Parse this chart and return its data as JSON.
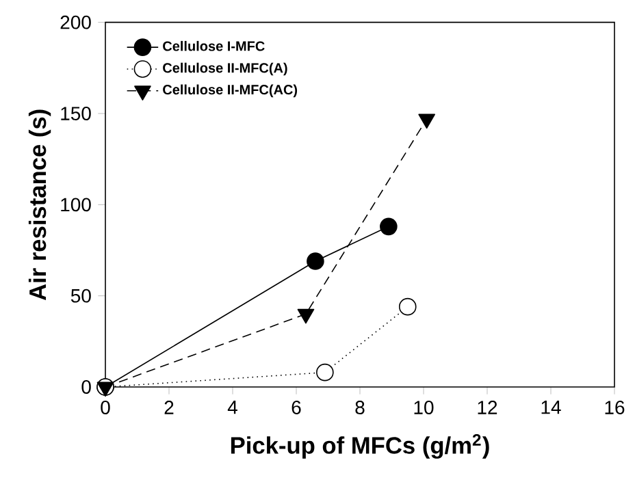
{
  "chart_data": {
    "type": "line",
    "xlabel": "Pick-up of MFCs (g/m$^{2}$)",
    "ylabel": "Air resistance (s)",
    "xlim": [
      0,
      16
    ],
    "xticks": [
      0,
      2,
      4,
      6,
      8,
      10,
      12,
      14,
      16
    ],
    "ylim": [
      0,
      200
    ],
    "yticks": [
      0,
      50,
      100,
      150,
      200
    ],
    "grid": false,
    "legend": "top left",
    "series": [
      {
        "name": "Cellulose I-MFC",
        "color": "#000000",
        "marker": "circle",
        "line_style": "solid",
        "x": [
          0,
          6.6,
          8.9
        ],
        "values": [
          0,
          69,
          88
        ]
      },
      {
        "name": "Cellulose II-MFC(A)",
        "color": "#ffffff",
        "marker": "circle",
        "line_style": "dotted",
        "x": [
          0,
          6.9,
          9.5
        ],
        "values": [
          0,
          8,
          44
        ]
      },
      {
        "name": "Cellulose II-MFC(AC)",
        "color": "#000000",
        "marker": "triangle",
        "line_style": "dashed",
        "x": [
          0,
          6.3,
          10.1
        ],
        "values": [
          0,
          40,
          147
        ]
      }
    ]
  }
}
